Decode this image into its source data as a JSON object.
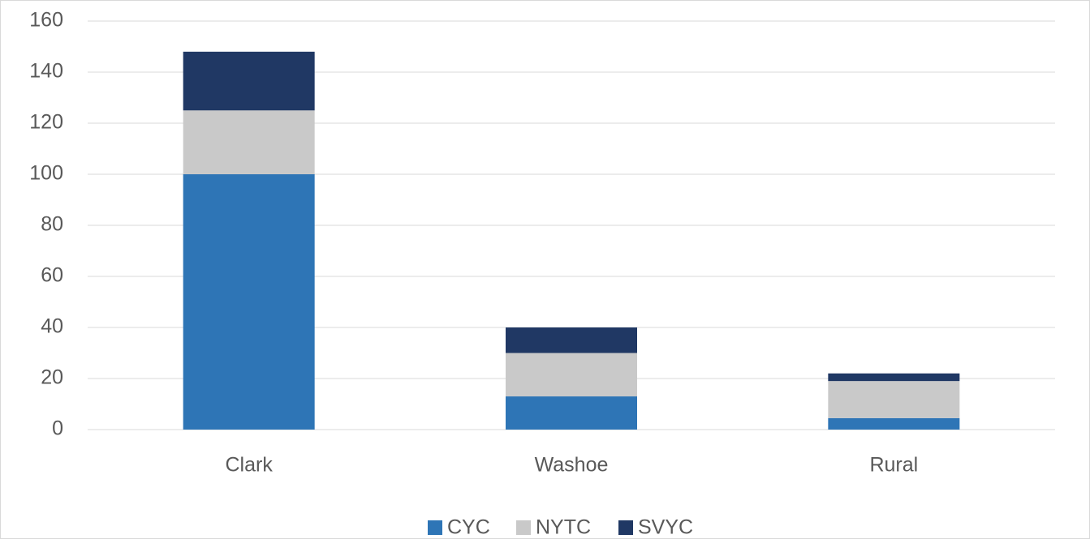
{
  "chart_data": {
    "type": "stacked_bar",
    "categories": [
      "Clark",
      "Washoe",
      "Rural"
    ],
    "series": [
      {
        "name": "CYC",
        "color": "#2e75b6",
        "values": [
          100,
          13,
          4.5
        ]
      },
      {
        "name": "NYTC",
        "color": "#c9c9c9",
        "values": [
          25,
          17,
          14.5
        ]
      },
      {
        "name": "SVYC",
        "color": "#203864",
        "values": [
          23,
          10,
          3
        ]
      }
    ],
    "ylim": [
      0,
      160
    ],
    "yticks": [
      0,
      20,
      40,
      60,
      80,
      100,
      120,
      140,
      160
    ],
    "grid": true,
    "legend": "bottom"
  }
}
